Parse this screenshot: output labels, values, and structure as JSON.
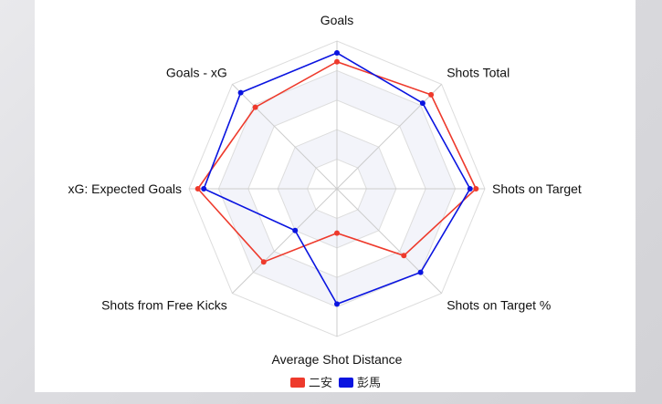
{
  "chart_data": {
    "type": "radar",
    "axes": [
      "Goals",
      "Shots Total",
      "Shots on Target",
      "Shots on Target %",
      "Average Shot Distance",
      "Shots from Free Kicks",
      "xG: Expected Goals",
      "Goals - xG"
    ],
    "rmax": 100,
    "rings": 5,
    "series": [
      {
        "name": "二安",
        "color": "#ee3a2c",
        "values": [
          86,
          90,
          94,
          64,
          30,
          70,
          94,
          78
        ]
      },
      {
        "name": "彭馬",
        "color": "#0a14e0",
        "values": [
          92,
          82,
          90,
          80,
          78,
          40,
          90,
          92
        ]
      }
    ],
    "legend": "bottom"
  }
}
